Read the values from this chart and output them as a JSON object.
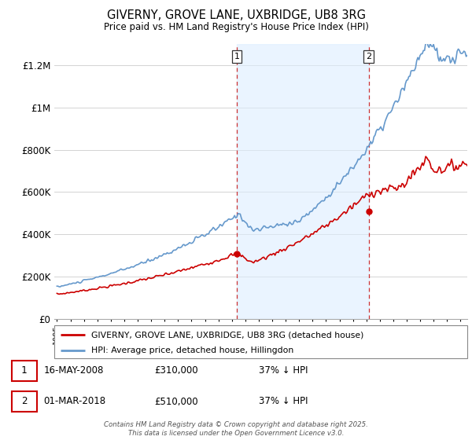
{
  "title": "GIVERNY, GROVE LANE, UXBRIDGE, UB8 3RG",
  "subtitle": "Price paid vs. HM Land Registry's House Price Index (HPI)",
  "ylim": [
    0,
    1300000
  ],
  "yticks": [
    0,
    200000,
    400000,
    600000,
    800000,
    1000000,
    1200000
  ],
  "ytick_labels": [
    "£0",
    "£200K",
    "£400K",
    "£600K",
    "£800K",
    "£1M",
    "£1.2M"
  ],
  "x_start_year": 1995,
  "x_end_year": 2025,
  "sale1_year": 2008.37,
  "sale1_price": 310000,
  "sale2_year": 2018.17,
  "sale2_price": 510000,
  "legend_line1": "GIVERNY, GROVE LANE, UXBRIDGE, UB8 3RG (detached house)",
  "legend_line2": "HPI: Average price, detached house, Hillingdon",
  "ann1_date": "16-MAY-2008",
  "ann1_price": "£310,000",
  "ann1_hpi": "37% ↓ HPI",
  "ann2_date": "01-MAR-2018",
  "ann2_price": "£510,000",
  "ann2_hpi": "37% ↓ HPI",
  "footer": "Contains HM Land Registry data © Crown copyright and database right 2025.\nThis data is licensed under the Open Government Licence v3.0.",
  "color_red": "#cc0000",
  "color_blue": "#6699cc",
  "color_shading": "#ddeeff"
}
